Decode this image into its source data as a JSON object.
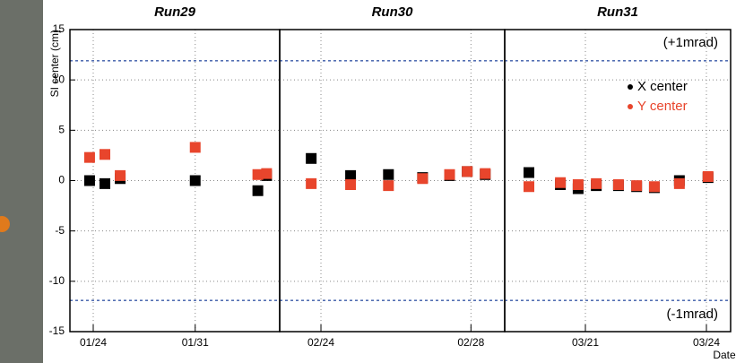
{
  "chart_data": [
    {
      "type": "scatter",
      "title": "Run29",
      "y_label": "SI center (cm)",
      "xlim": [
        22.4,
        36.8
      ],
      "ylim": [
        -15,
        15
      ],
      "xticks": [
        {
          "value": 24,
          "label": "01/24"
        },
        {
          "value": 31,
          "label": "01/31"
        }
      ],
      "yticks": [
        -15,
        -10,
        -5,
        0,
        5,
        10,
        15
      ],
      "series": [
        {
          "color": "#000000",
          "x": [
            23.75,
            24.8,
            25.85,
            31.0,
            35.3,
            35.9
          ],
          "values": [
            0,
            -0.3,
            0.2,
            0,
            -1,
            0.5
          ]
        },
        {
          "color": "#e8452c",
          "x": [
            23.75,
            24.8,
            25.85,
            31.0,
            35.3,
            35.9
          ],
          "values": [
            2.3,
            2.6,
            0.5,
            3.3,
            0.6,
            0.7
          ]
        }
      ]
    },
    {
      "type": "scatter",
      "title": "Run30",
      "xlim": [
        53.9,
        59.9
      ],
      "ylim": [
        -15,
        15
      ],
      "xticks": [
        {
          "value": 55,
          "label": "02/24"
        },
        {
          "value": 59,
          "label": "02/28"
        }
      ],
      "yticks": [
        -15,
        -10,
        -5,
        0,
        5,
        10,
        15
      ],
      "series": [
        {
          "color": "#000000",
          "x": [
            54.74,
            55.79,
            56.8,
            57.71,
            58.43,
            58.9,
            59.38
          ],
          "values": [
            2.2,
            0.5,
            0.6,
            0.3,
            0.5,
            0.9,
            0.6
          ]
        },
        {
          "color": "#e8452c",
          "x": [
            54.74,
            55.79,
            56.8,
            57.71,
            58.43,
            58.9,
            59.38
          ],
          "values": [
            -0.3,
            -0.4,
            -0.5,
            0.2,
            0.6,
            0.9,
            0.7
          ]
        }
      ]
    },
    {
      "type": "scatter",
      "title": "Run31",
      "x_label": "Date",
      "xlim": [
        78,
        83.6
      ],
      "ylim": [
        -15,
        15
      ],
      "xticks": [
        {
          "value": 80,
          "label": "03/21"
        },
        {
          "value": 83,
          "label": "03/24"
        }
      ],
      "yticks": [
        -15,
        -10,
        -5,
        0,
        5,
        10,
        15
      ],
      "reference_lines": [
        {
          "value": 11.9,
          "label": "(+1mrad)"
        },
        {
          "value": -11.9,
          "label": "(-1mrad)"
        }
      ],
      "legend": "upper right",
      "series": [
        {
          "name": "X center",
          "color": "#000000",
          "x": [
            78.6,
            79.38,
            79.82,
            80.27,
            80.82,
            81.27,
            81.71,
            82.33,
            83.04
          ],
          "values": [
            0.8,
            -0.4,
            -0.8,
            -0.5,
            -0.5,
            -0.6,
            -0.7,
            0,
            0.3
          ]
        },
        {
          "name": "Y center",
          "color": "#e8452c",
          "x": [
            78.6,
            79.38,
            79.82,
            80.27,
            80.82,
            81.27,
            81.71,
            82.33,
            83.04
          ],
          "values": [
            -0.6,
            -0.2,
            -0.4,
            -0.3,
            -0.4,
            -0.5,
            -0.6,
            -0.3,
            0.4
          ]
        }
      ]
    }
  ]
}
